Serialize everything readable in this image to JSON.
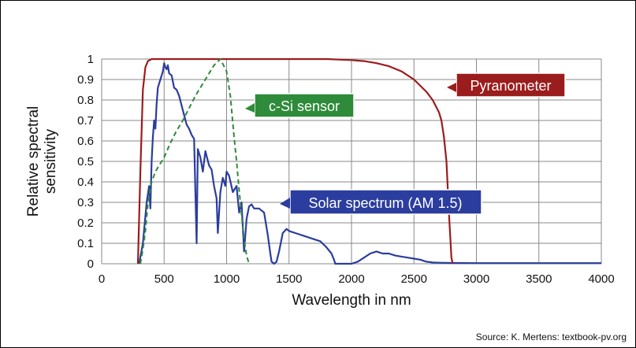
{
  "chart_data": {
    "type": "line",
    "xlabel": "Wavelength in nm",
    "ylabel": "Relative spectral sensitivity",
    "xlim": [
      0,
      4000
    ],
    "ylim": [
      0,
      1
    ],
    "x_ticks": [
      0,
      500,
      1000,
      1500,
      2000,
      2500,
      3000,
      3500,
      4000
    ],
    "y_ticks": [
      0,
      0.1,
      0.2,
      0.3,
      0.4,
      0.5,
      0.6,
      0.7,
      0.8,
      0.9,
      1
    ],
    "y_tick_labels": [
      "0",
      "0.1",
      "0.2",
      "0.3",
      "0.4",
      "0.5",
      "0.6",
      "0.7",
      "0.8",
      "0.9",
      "1"
    ],
    "grid": true,
    "series": [
      {
        "name": "Pyranometer",
        "color": "#9b1c1c",
        "style": "solid",
        "x": [
          290,
          310,
          330,
          350,
          370,
          400,
          450,
          500,
          1000,
          1500,
          1800,
          2000,
          2100,
          2200,
          2300,
          2400,
          2500,
          2600,
          2650,
          2700,
          2720,
          2740,
          2760,
          2780,
          2800,
          2810
        ],
        "y": [
          0,
          0.45,
          0.85,
          0.96,
          0.99,
          1.0,
          1.0,
          1.0,
          1.0,
          1.0,
          1.0,
          0.995,
          0.99,
          0.98,
          0.965,
          0.94,
          0.9,
          0.84,
          0.8,
          0.74,
          0.7,
          0.62,
          0.5,
          0.25,
          0.03,
          0
        ]
      },
      {
        "name": "c-Si sensor",
        "color": "#2e8b3a",
        "style": "dashed",
        "x": [
          310,
          330,
          350,
          370,
          400,
          430,
          460,
          500,
          550,
          600,
          650,
          700,
          750,
          800,
          850,
          900,
          950,
          1000,
          1030,
          1060,
          1080,
          1100,
          1120,
          1140,
          1160,
          1180
        ],
        "y": [
          0,
          0.07,
          0.16,
          0.29,
          0.4,
          0.45,
          0.48,
          0.52,
          0.59,
          0.65,
          0.7,
          0.76,
          0.82,
          0.87,
          0.92,
          0.97,
          1.0,
          0.94,
          0.82,
          0.62,
          0.5,
          0.36,
          0.24,
          0.12,
          0.04,
          0
        ]
      },
      {
        "name": "Solar spectrum (AM 1.5)",
        "color": "#2b3d9e",
        "style": "solid",
        "x": [
          300,
          330,
          360,
          380,
          390,
          400,
          410,
          420,
          430,
          440,
          450,
          460,
          470,
          480,
          490,
          500,
          510,
          520,
          530,
          540,
          560,
          580,
          600,
          620,
          650,
          680,
          700,
          720,
          740,
          760,
          770,
          790,
          810,
          830,
          860,
          880,
          900,
          920,
          930,
          950,
          970,
          990,
          1000,
          1020,
          1050,
          1080,
          1100,
          1120,
          1140,
          1160,
          1180,
          1200,
          1220,
          1260,
          1300,
          1330,
          1350,
          1360,
          1380,
          1400,
          1420,
          1450,
          1480,
          1500,
          1550,
          1600,
          1650,
          1700,
          1750,
          1800,
          1840,
          1860,
          1870,
          1900,
          1950,
          2000,
          2050,
          2100,
          2150,
          2200,
          2250,
          2300,
          2350,
          2400,
          2450,
          2500,
          2550,
          2600,
          2650,
          2700,
          2800,
          3000,
          3500,
          4000
        ],
        "y": [
          0.0,
          0.1,
          0.3,
          0.38,
          0.27,
          0.5,
          0.62,
          0.7,
          0.66,
          0.78,
          0.86,
          0.88,
          0.9,
          0.92,
          0.94,
          0.98,
          0.96,
          0.95,
          0.97,
          0.93,
          0.92,
          0.86,
          0.85,
          0.82,
          0.75,
          0.68,
          0.66,
          0.63,
          0.61,
          0.1,
          0.56,
          0.52,
          0.45,
          0.55,
          0.48,
          0.46,
          0.38,
          0.32,
          0.15,
          0.35,
          0.42,
          0.38,
          0.45,
          0.43,
          0.35,
          0.38,
          0.25,
          0.3,
          0.06,
          0.22,
          0.28,
          0.29,
          0.27,
          0.27,
          0.25,
          0.14,
          0.05,
          0.01,
          0.0,
          0.01,
          0.06,
          0.15,
          0.17,
          0.16,
          0.15,
          0.14,
          0.13,
          0.12,
          0.11,
          0.08,
          0.05,
          0.02,
          0.0,
          0.0,
          0.0,
          0.0,
          0.01,
          0.03,
          0.05,
          0.06,
          0.05,
          0.05,
          0.04,
          0.035,
          0.03,
          0.025,
          0.02,
          0.01,
          0.006,
          0.005,
          0.004,
          0.003,
          0.003,
          0.003
        ]
      }
    ],
    "annotations": [
      {
        "text": "Pyranometer",
        "color": "#9b1c1c"
      },
      {
        "text": "c-Si sensor",
        "color": "#2e8b3a"
      },
      {
        "text": "Solar spectrum (AM 1.5)",
        "color": "#2b3d9e"
      }
    ],
    "source": "Source: K. Mertens: textbook-pv.org"
  }
}
